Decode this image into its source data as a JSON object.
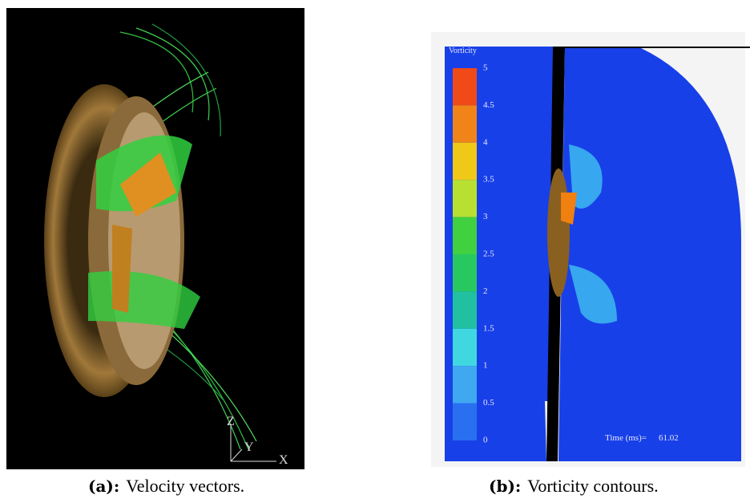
{
  "figures": [
    {
      "label": "(a):",
      "caption": "Velocity vectors.",
      "axes": [
        "Z",
        "Y",
        "X"
      ]
    },
    {
      "label": "(b):",
      "caption": "Vorticity contours.",
      "colorbar": {
        "title": "Vorticity",
        "ticks": [
          5,
          4.5,
          4,
          3.5,
          3,
          2.5,
          2,
          1.5,
          1,
          0.5,
          0
        ]
      },
      "time_label": "Time (ms)=",
      "time_value": "61.02"
    }
  ]
}
